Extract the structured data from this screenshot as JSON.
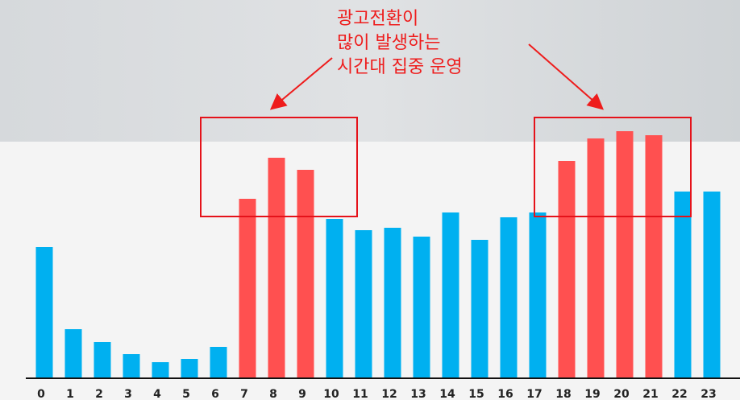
{
  "chart_data": {
    "type": "bar",
    "annotation": [
      "광고전환이",
      "많이 발생하는",
      "시간대 집중 운영"
    ],
    "categories": [
      "0",
      "1",
      "2",
      "3",
      "4",
      "5",
      "6",
      "7",
      "8",
      "9",
      "10",
      "11",
      "12",
      "13",
      "14",
      "15",
      "16",
      "17",
      "18",
      "19",
      "20",
      "21",
      "22",
      "23"
    ],
    "values": [
      162,
      60,
      44,
      29,
      19,
      23,
      38,
      222,
      273,
      258,
      197,
      183,
      186,
      175,
      205,
      171,
      199,
      205,
      269,
      297,
      306,
      301,
      231,
      231
    ],
    "colors": [
      "#00b0f0",
      "#00b0f0",
      "#00b0f0",
      "#00b0f0",
      "#00b0f0",
      "#00b0f0",
      "#00b0f0",
      "#ff5050",
      "#ff5050",
      "#ff5050",
      "#00b0f0",
      "#00b0f0",
      "#00b0f0",
      "#00b0f0",
      "#00b0f0",
      "#00b0f0",
      "#00b0f0",
      "#00b0f0",
      "#ff5050",
      "#ff5050",
      "#ff5050",
      "#ff5050",
      "#00b0f0",
      "#00b0f0"
    ]
  }
}
